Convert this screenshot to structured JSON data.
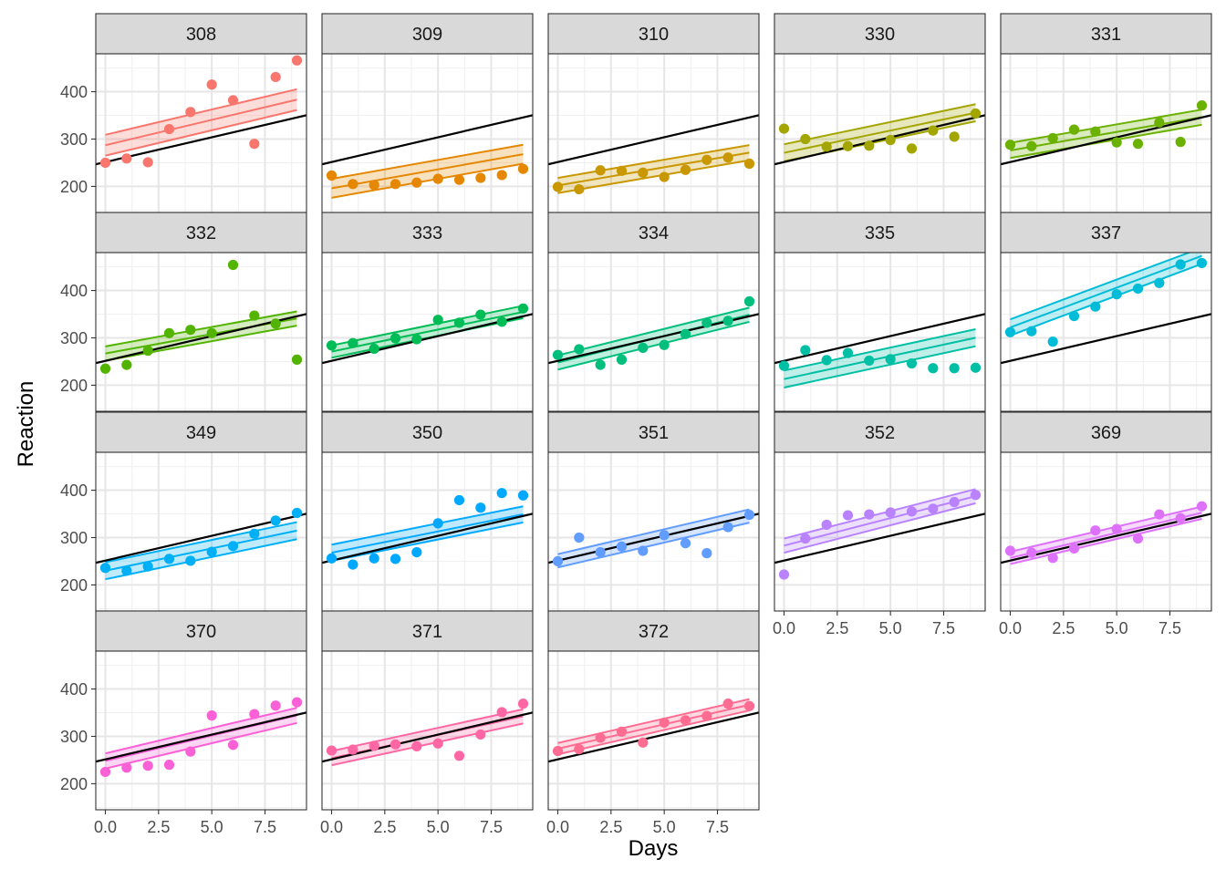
{
  "chart_data": {
    "type": "scatter",
    "layout": "facet_wrap",
    "xlabel": "Days",
    "ylabel": "Reaction",
    "xlim": [
      -0.45,
      9.45
    ],
    "ylim": [
      145,
      480
    ],
    "xticks": [
      0,
      2.5,
      5,
      7.5
    ],
    "xtick_labels": [
      "0.0",
      "2.5",
      "5.0",
      "7.5"
    ],
    "yticks": [
      200,
      300,
      400
    ],
    "ytick_labels": [
      "200",
      "300",
      "400"
    ],
    "grid": true,
    "population_line": {
      "intercept": 251.4,
      "slope": 10.47,
      "color": "#000000"
    },
    "x": [
      0,
      1,
      2,
      3,
      4,
      5,
      6,
      7,
      8,
      9
    ],
    "series": [
      {
        "name": "308",
        "color": "#F8766D",
        "values": [
          250,
          259,
          251,
          321,
          357,
          415,
          382,
          290,
          431,
          466
        ],
        "fit": {
          "intercept": 287,
          "slope": 10.7,
          "band": 22
        }
      },
      {
        "name": "309",
        "color": "#E58700",
        "values": [
          223,
          205,
          203,
          205,
          208,
          216,
          214,
          218,
          224,
          237
        ],
        "fit": {
          "intercept": 196,
          "slope": 8.0,
          "band": 20
        }
      },
      {
        "name": "310",
        "color": "#C99800",
        "values": [
          199,
          194,
          234,
          233,
          229,
          220,
          235,
          256,
          261,
          248
        ],
        "fit": {
          "intercept": 202,
          "slope": 7.7,
          "band": 16
        }
      },
      {
        "name": "330",
        "color": "#A3A500",
        "values": [
          322,
          300,
          284,
          285,
          286,
          298,
          280,
          318,
          305,
          354
        ],
        "fit": {
          "intercept": 271,
          "slope": 9.4,
          "band": 18
        }
      },
      {
        "name": "331",
        "color": "#6BB100",
        "values": [
          288,
          285,
          302,
          320,
          316,
          293,
          290,
          335,
          294,
          371
        ],
        "fit": {
          "intercept": 276,
          "slope": 7.8,
          "band": 16
        }
      },
      {
        "name": "332",
        "color": "#53B400",
        "values": [
          235,
          243,
          273,
          310,
          317,
          310,
          454,
          347,
          330,
          254
        ],
        "fit": {
          "intercept": 267,
          "slope": 8.2,
          "band": 15
        }
      },
      {
        "name": "333",
        "color": "#00BC56",
        "values": [
          284,
          289,
          277,
          299,
          297,
          338,
          332,
          349,
          334,
          362
        ],
        "fit": {
          "intercept": 271,
          "slope": 9.3,
          "band": 13
        }
      },
      {
        "name": "334",
        "color": "#00BF7D",
        "values": [
          264,
          276,
          243,
          254,
          279,
          285,
          308,
          332,
          336,
          377
        ],
        "fit": {
          "intercept": 248,
          "slope": 11.2,
          "band": 15
        }
      },
      {
        "name": "335",
        "color": "#00BFA5",
        "values": [
          241,
          274,
          253,
          268,
          252,
          255,
          246,
          236,
          236,
          237
        ],
        "fit": {
          "intercept": 213,
          "slope": 9.7,
          "band": 18
        }
      },
      {
        "name": "337",
        "color": "#00BCD8",
        "values": [
          312,
          314,
          292,
          346,
          366,
          392,
          404,
          416,
          455,
          458
        ],
        "fit": {
          "intercept": 322,
          "slope": 16.8,
          "band": 17
        }
      },
      {
        "name": "349",
        "color": "#00B0F6",
        "values": [
          236,
          230,
          239,
          255,
          251,
          270,
          282,
          308,
          336,
          352
        ],
        "fit": {
          "intercept": 230,
          "slope": 9.4,
          "band": 18
        }
      },
      {
        "name": "350",
        "color": "#00A9FF",
        "values": [
          256,
          243,
          256,
          255,
          269,
          330,
          379,
          363,
          394,
          389
        ],
        "fit": {
          "intercept": 268,
          "slope": 9.0,
          "band": 17
        }
      },
      {
        "name": "351",
        "color": "#619CFF",
        "values": [
          250,
          300,
          269,
          281,
          272,
          305,
          288,
          267,
          322,
          348
        ],
        "fit": {
          "intercept": 251,
          "slope": 10.5,
          "band": 14
        }
      },
      {
        "name": "352",
        "color": "#B983FF",
        "values": [
          222,
          298,
          327,
          347,
          349,
          353,
          355,
          361,
          375,
          390
        ],
        "fit": {
          "intercept": 283,
          "slope": 11.6,
          "band": 15
        }
      },
      {
        "name": "369",
        "color": "#DE71F9",
        "values": [
          272,
          268,
          257,
          277,
          315,
          318,
          298,
          349,
          341,
          366
        ],
        "fit": {
          "intercept": 257,
          "slope": 10.6,
          "band": 13
        }
      },
      {
        "name": "370",
        "color": "#FB61D7",
        "values": [
          225,
          234,
          238,
          240,
          268,
          344,
          282,
          347,
          365,
          372
        ],
        "fit": {
          "intercept": 248,
          "slope": 10.7,
          "band": 16
        }
      },
      {
        "name": "371",
        "color": "#FF67A4",
        "values": [
          270,
          272,
          280,
          283,
          279,
          285,
          259,
          304,
          351,
          369
        ],
        "fit": {
          "intercept": 254,
          "slope": 9.8,
          "band": 15
        }
      },
      {
        "name": "372",
        "color": "#FF6C91",
        "values": [
          269,
          273,
          297,
          310,
          287,
          329,
          334,
          343,
          369,
          364
        ],
        "fit": {
          "intercept": 274,
          "slope": 10.3,
          "band": 12
        }
      }
    ]
  }
}
